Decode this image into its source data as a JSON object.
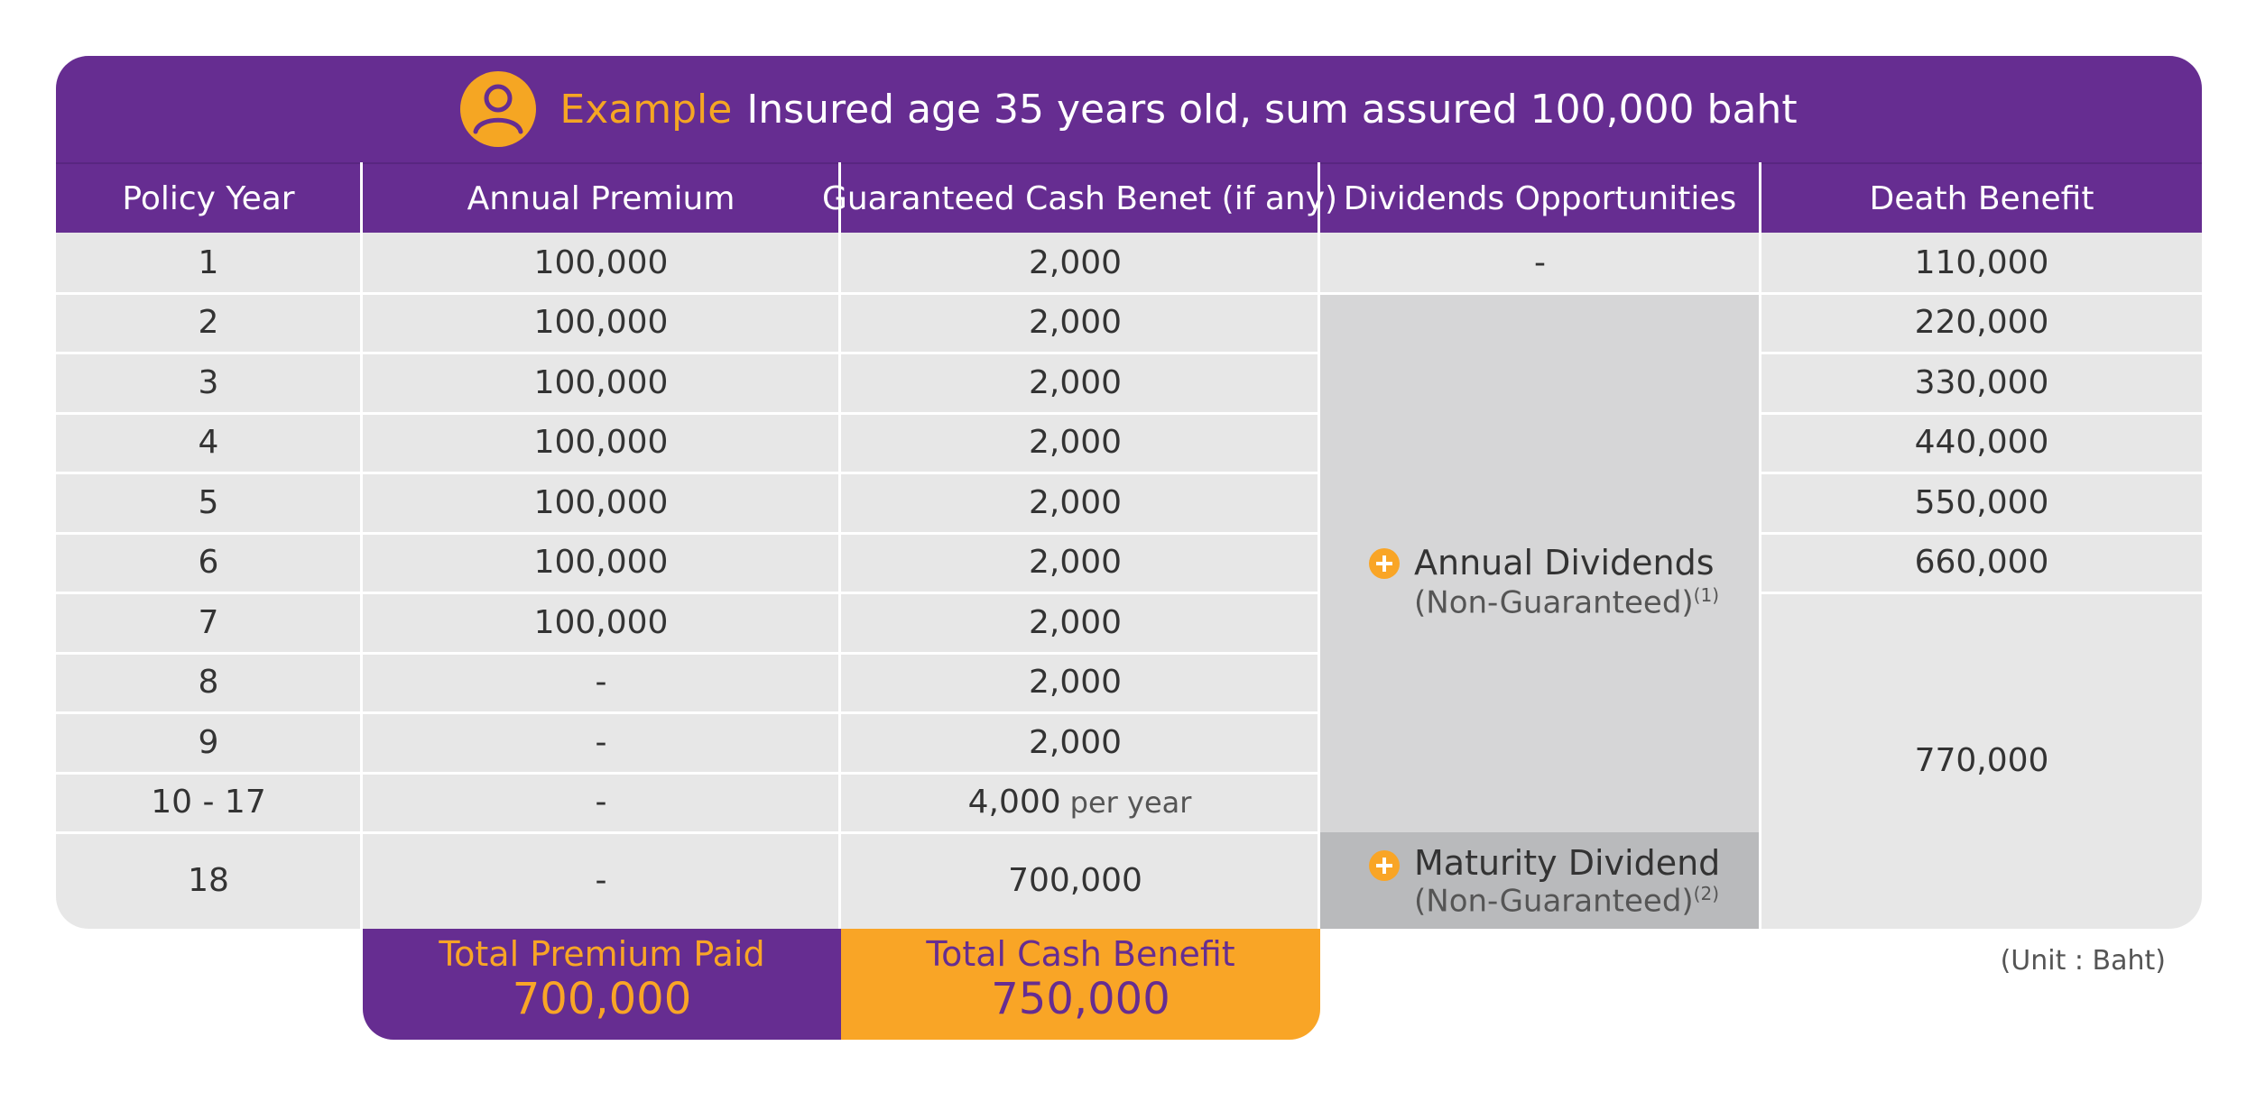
{
  "banner": {
    "example_word": "Example",
    "text": "Insured age 35 years old, sum assured 100,000 baht",
    "icon": "person-icon",
    "color_brand": "#662d91",
    "color_accent": "#f5a623"
  },
  "columns": [
    "Policy Year",
    "Annual Premium",
    "Guaranteed Cash Benet (if any)",
    "Dividends Opportunities",
    "Death Benefit"
  ],
  "rows": [
    {
      "year": "1",
      "premium": "100,000",
      "cash": "2,000",
      "cash_unit": "",
      "dividend": "-",
      "death": "110,000"
    },
    {
      "year": "2",
      "premium": "100,000",
      "cash": "2,000",
      "cash_unit": "",
      "death": "220,000"
    },
    {
      "year": "3",
      "premium": "100,000",
      "cash": "2,000",
      "cash_unit": "",
      "death": "330,000"
    },
    {
      "year": "4",
      "premium": "100,000",
      "cash": "2,000",
      "cash_unit": "",
      "death": "440,000"
    },
    {
      "year": "5",
      "premium": "100,000",
      "cash": "2,000",
      "cash_unit": "",
      "death": "550,000"
    },
    {
      "year": "6",
      "premium": "100,000",
      "cash": "2,000",
      "cash_unit": "",
      "death": "660,000"
    },
    {
      "year": "7",
      "premium": "100,000",
      "cash": "2,000",
      "cash_unit": ""
    },
    {
      "year": "8",
      "premium": "-",
      "cash": "2,000",
      "cash_unit": ""
    },
    {
      "year": "9",
      "premium": "-",
      "cash": "2,000",
      "cash_unit": ""
    },
    {
      "year": "10 - 17",
      "premium": "-",
      "cash": "4,000",
      "cash_unit": "per year"
    },
    {
      "year": "18",
      "premium": "-",
      "cash": "700,000",
      "cash_unit": ""
    }
  ],
  "death_benefit_merged": "770,000",
  "annual_dividends": {
    "title": "Annual Dividends",
    "sub": "(Non-Guaranteed)",
    "note": "(1)",
    "icon": "plus-circle-icon"
  },
  "maturity_dividend": {
    "title": "Maturity Dividend",
    "sub": "(Non-Guaranteed)",
    "note": "(2)",
    "icon": "plus-circle-icon"
  },
  "totals": {
    "premium_label": "Total Premium Paid",
    "premium_value": "700,000",
    "cash_label": "Total Cash Benefit",
    "cash_value": "750,000"
  },
  "unit_note": "(Unit : Baht)"
}
